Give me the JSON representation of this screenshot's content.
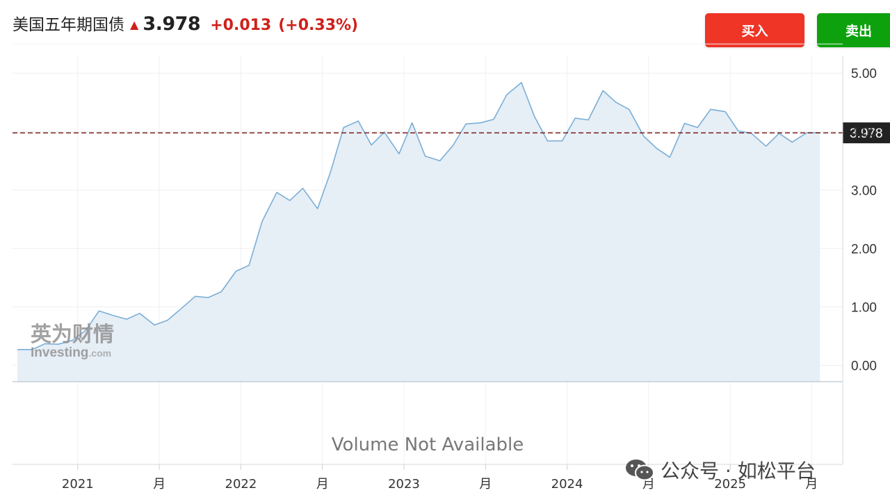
{
  "header": {
    "title": "美国五年期国债",
    "direction_icon": "up-arrow-icon",
    "price": "3.978",
    "change": "+0.013",
    "change_pct": "(+0.33%)",
    "up_color": "#d0201a"
  },
  "actions": {
    "buy_label": "买入",
    "sell_label": "卖出",
    "buy_color": "#ee3526",
    "sell_color": "#0da10e"
  },
  "watermark": {
    "cn": "英为财情",
    "en": "Investing",
    "suffix": ".com"
  },
  "volume_text": "Volume Not Available",
  "footer": {
    "icon": "wechat-icon",
    "text": "公众号 · 如松平台"
  },
  "chart_data": {
    "type": "area",
    "title": "",
    "xlabel": "",
    "ylabel": "",
    "current_value": 3.978,
    "current_value_label": "3.978",
    "ylim": [
      -0.28,
      5.3
    ],
    "y_ticks": [
      "0.00",
      "1.00",
      "2.00",
      "3.00",
      "4.00",
      "5.00"
    ],
    "y_tick_values": [
      0,
      1,
      2,
      3,
      4,
      5
    ],
    "x_tick_labels": [
      "2021",
      "月",
      "2022",
      "月",
      "2023",
      "月",
      "2024",
      "月",
      "2025",
      "月"
    ],
    "x_tick_positions": [
      2021.0,
      2021.5,
      2022.0,
      2022.5,
      2023.0,
      2023.5,
      2024.0,
      2024.5,
      2025.0,
      2025.5
    ],
    "xlim": [
      2020.6,
      2025.69
    ],
    "grid": true,
    "line_color": "#7aaed6",
    "fill_color": "#e6eef6",
    "reference_line_color": "#7a1c1c",
    "series": [
      {
        "x": [
          2020.63,
          2020.72,
          2020.8,
          2020.88,
          2020.97,
          2021.05,
          2021.13,
          2021.22,
          2021.3,
          2021.38,
          2021.47,
          2021.55,
          2021.63,
          2021.72,
          2021.8,
          2021.88,
          2021.97,
          2022.05,
          2022.13,
          2022.22,
          2022.3,
          2022.38,
          2022.47,
          2022.55,
          2022.63,
          2022.72,
          2022.8,
          2022.88,
          2022.97,
          2023.05,
          2023.13,
          2023.22,
          2023.3,
          2023.38,
          2023.47,
          2023.55,
          2023.63,
          2023.72,
          2023.8,
          2023.88,
          2023.97,
          2024.05,
          2024.13,
          2024.22,
          2024.3,
          2024.38,
          2024.47,
          2024.55,
          2024.63,
          2024.72,
          2024.8,
          2024.88,
          2024.97,
          2025.05,
          2025.13,
          2025.22,
          2025.3,
          2025.38,
          2025.47,
          2025.55
        ],
        "values": [
          0.27,
          0.27,
          0.37,
          0.36,
          0.43,
          0.6,
          0.93,
          0.85,
          0.79,
          0.89,
          0.69,
          0.77,
          0.96,
          1.18,
          1.16,
          1.26,
          1.61,
          1.71,
          2.46,
          2.96,
          2.82,
          3.03,
          2.68,
          3.31,
          4.07,
          4.18,
          3.77,
          3.99,
          3.62,
          4.15,
          3.58,
          3.5,
          3.76,
          4.13,
          4.15,
          4.21,
          4.63,
          4.84,
          4.26,
          3.84,
          3.84,
          4.23,
          4.2,
          4.7,
          4.5,
          4.38,
          3.92,
          3.71,
          3.56,
          4.14,
          4.07,
          4.38,
          4.34,
          4.01,
          3.97,
          3.75,
          3.97,
          3.82,
          3.98,
          3.98
        ]
      }
    ]
  }
}
